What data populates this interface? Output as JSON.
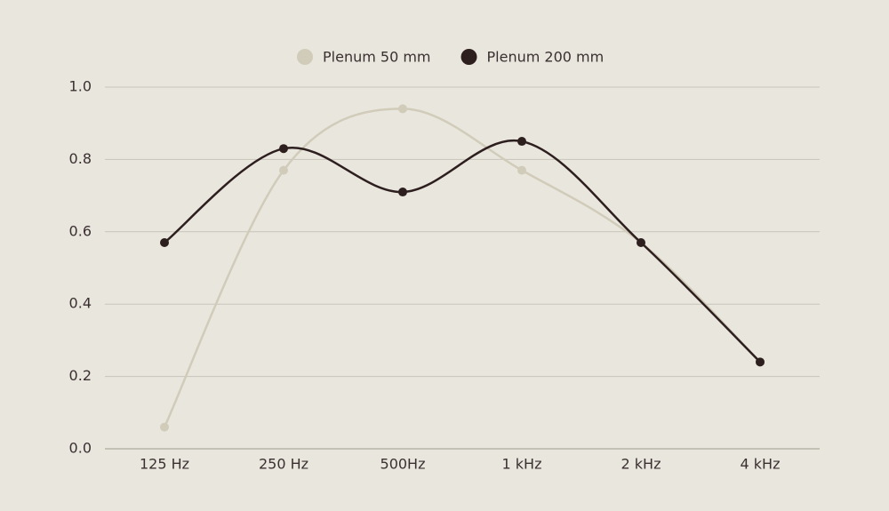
{
  "chart_data": {
    "type": "line",
    "categories": [
      "125 Hz",
      "250 Hz",
      "500Hz",
      "1 kHz",
      "2 kHz",
      "4 kHz"
    ],
    "series": [
      {
        "name": "Plenum 50 mm",
        "color": "#d1ccba",
        "values": [
          0.06,
          0.77,
          0.94,
          0.77,
          0.57,
          0.24
        ]
      },
      {
        "name": "Plenum 200 mm",
        "color": "#2e1f1f",
        "values": [
          0.57,
          0.83,
          0.71,
          0.85,
          0.57,
          0.24
        ]
      }
    ],
    "ylim": [
      0,
      1
    ],
    "yticks": [
      {
        "value": 0,
        "label": "0.0"
      },
      0.2,
      0.4,
      0.6,
      0.8,
      {
        "value": 1,
        "label": "1.0"
      }
    ],
    "grid": true
  }
}
